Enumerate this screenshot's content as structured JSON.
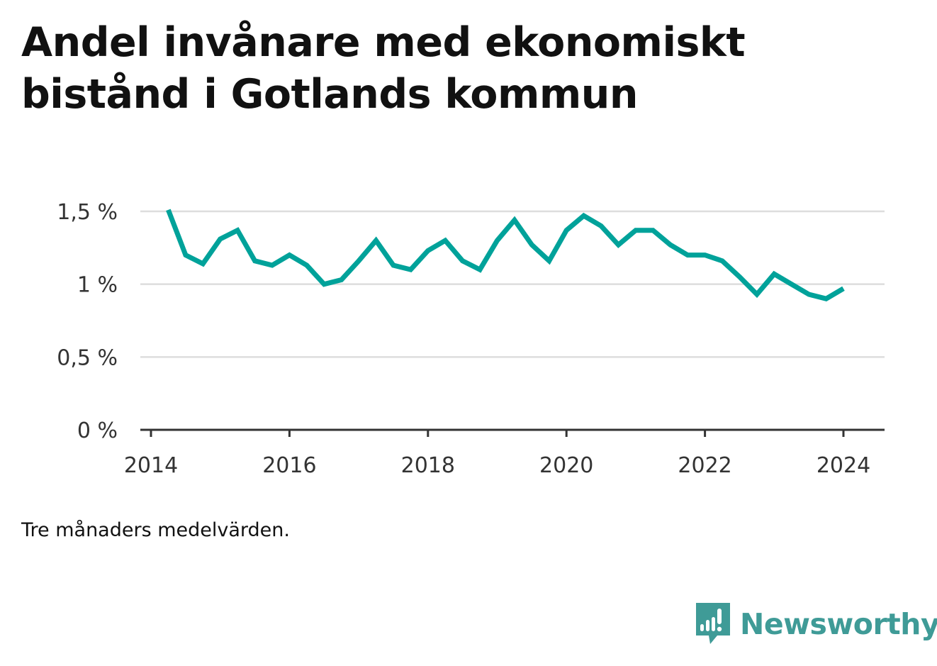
{
  "title": "Andel invånare med ekonomiskt bistånd i Gotlands kommun",
  "note": "Tre månaders medelvärden.",
  "brand": {
    "name": "Newsworthy",
    "color": "#3f9b97",
    "icon": "bar-chart-speech-bubble-icon"
  },
  "chart_data": {
    "type": "line",
    "line_color": "#00a29a",
    "grid": true,
    "ylim": [
      0,
      1.5
    ],
    "yticks": [
      {
        "value": 0,
        "label": "0 %"
      },
      {
        "value": 0.5,
        "label": "0,5 %"
      },
      {
        "value": 1,
        "label": "1 %"
      },
      {
        "value": 1.5,
        "label": "1,5 %"
      }
    ],
    "xlim": [
      "2014-01",
      "2024-12"
    ],
    "xticks": [
      {
        "value": "2014-01",
        "label": "2014"
      },
      {
        "value": "2016-01",
        "label": "2016"
      },
      {
        "value": "2018-01",
        "label": "2018"
      },
      {
        "value": "2020-01",
        "label": "2020"
      },
      {
        "value": "2022-01",
        "label": "2022"
      },
      {
        "value": "2024-01",
        "label": "2024"
      }
    ],
    "series": [
      {
        "points": [
          {
            "x": "2014-04",
            "y": 1.51
          },
          {
            "x": "2014-07",
            "y": 1.2
          },
          {
            "x": "2014-10",
            "y": 1.14
          },
          {
            "x": "2015-01",
            "y": 1.31
          },
          {
            "x": "2015-04",
            "y": 1.37
          },
          {
            "x": "2015-07",
            "y": 1.16
          },
          {
            "x": "2015-10",
            "y": 1.13
          },
          {
            "x": "2016-01",
            "y": 1.2
          },
          {
            "x": "2016-04",
            "y": 1.13
          },
          {
            "x": "2016-07",
            "y": 1.0
          },
          {
            "x": "2016-10",
            "y": 1.03
          },
          {
            "x": "2017-01",
            "y": 1.16
          },
          {
            "x": "2017-04",
            "y": 1.3
          },
          {
            "x": "2017-07",
            "y": 1.13
          },
          {
            "x": "2017-10",
            "y": 1.1
          },
          {
            "x": "2018-01",
            "y": 1.23
          },
          {
            "x": "2018-04",
            "y": 1.3
          },
          {
            "x": "2018-07",
            "y": 1.16
          },
          {
            "x": "2018-10",
            "y": 1.1
          },
          {
            "x": "2019-01",
            "y": 1.3
          },
          {
            "x": "2019-04",
            "y": 1.44
          },
          {
            "x": "2019-07",
            "y": 1.27
          },
          {
            "x": "2019-10",
            "y": 1.16
          },
          {
            "x": "2020-01",
            "y": 1.37
          },
          {
            "x": "2020-04",
            "y": 1.47
          },
          {
            "x": "2020-07",
            "y": 1.4
          },
          {
            "x": "2020-10",
            "y": 1.27
          },
          {
            "x": "2021-01",
            "y": 1.37
          },
          {
            "x": "2021-04",
            "y": 1.37
          },
          {
            "x": "2021-07",
            "y": 1.27
          },
          {
            "x": "2021-10",
            "y": 1.2
          },
          {
            "x": "2022-01",
            "y": 1.2
          },
          {
            "x": "2022-04",
            "y": 1.16
          },
          {
            "x": "2022-07",
            "y": 1.05
          },
          {
            "x": "2022-10",
            "y": 0.93
          },
          {
            "x": "2023-01",
            "y": 1.07
          },
          {
            "x": "2023-04",
            "y": 1.0
          },
          {
            "x": "2023-07",
            "y": 0.93
          },
          {
            "x": "2023-10",
            "y": 0.9
          },
          {
            "x": "2024-01",
            "y": 0.97
          }
        ]
      }
    ]
  }
}
